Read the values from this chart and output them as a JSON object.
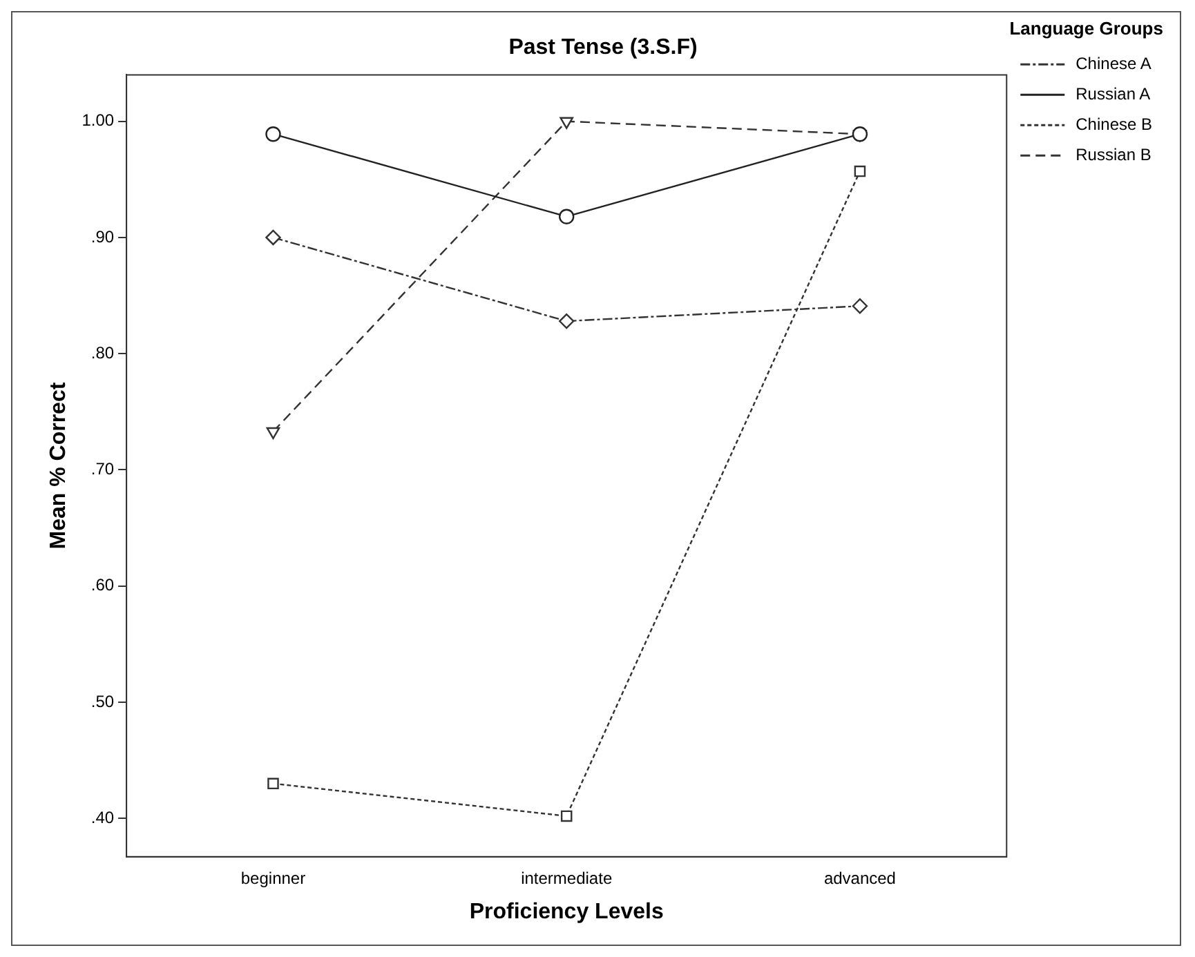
{
  "chart_data": {
    "type": "line",
    "title": "Past Tense (3.S.F)",
    "xlabel": "Proficiency Levels",
    "ylabel": "Mean % Correct",
    "legend_title": "Language Groups",
    "legend": "right",
    "grid": false,
    "categories": [
      "beginner",
      "intermediate",
      "advanced"
    ],
    "ylim": [
      0.367,
      1.04
    ],
    "yticks": [
      {
        "value": 0.4,
        "label": ".40"
      },
      {
        "value": 0.5,
        "label": ".50"
      },
      {
        "value": 0.6,
        "label": ".60"
      },
      {
        "value": 0.7,
        "label": ".70"
      },
      {
        "value": 0.8,
        "label": ".80"
      },
      {
        "value": 0.9,
        "label": ".90"
      },
      {
        "value": 1.0,
        "label": "1.00"
      }
    ],
    "series": [
      {
        "name": "Chinese A",
        "color": "#333333",
        "values": [
          0.9,
          0.828,
          0.841
        ],
        "marker": "diamond",
        "line_style": "dashdot"
      },
      {
        "name": "Russian A",
        "color": "#222222",
        "values": [
          0.989,
          0.918,
          0.989
        ],
        "marker": "circle",
        "line_style": "solid"
      },
      {
        "name": "Chinese B",
        "color": "#333333",
        "values": [
          0.43,
          0.402,
          0.957
        ],
        "marker": "square",
        "line_style": "dotted"
      },
      {
        "name": "Russian B",
        "color": "#333333",
        "values": [
          0.733,
          1.0,
          0.989
        ],
        "marker": "triangle",
        "line_style": "dashed"
      }
    ]
  }
}
